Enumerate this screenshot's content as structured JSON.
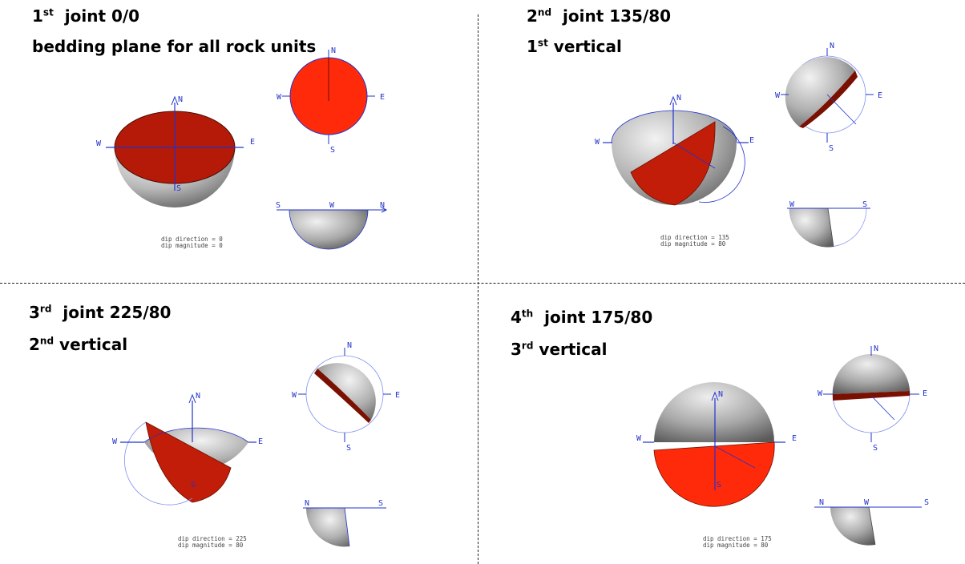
{
  "panels": [
    {
      "num": "1",
      "suffix": "st",
      "title": "joint 0/0",
      "subtitle": "bedding plane for all rock units",
      "sub_num": "",
      "sub_suffix": "",
      "caption1": "dip direction = 0",
      "caption2": "dip magnitude = 0"
    },
    {
      "num": "2",
      "suffix": "nd",
      "title": "joint 135/80",
      "subtitle": "vertical",
      "sub_num": "1",
      "sub_suffix": "st",
      "caption1": "dip direction = 135",
      "caption2": "dip magnitude = 80"
    },
    {
      "num": "3",
      "suffix": "rd",
      "title": "joint 225/80",
      "subtitle": "vertical",
      "sub_num": "2",
      "sub_suffix": "nd",
      "caption1": "dip direction = 225",
      "caption2": "dip magnitude = 80"
    },
    {
      "num": "4",
      "suffix": "th",
      "title": "joint 175/80",
      "subtitle": "vertical",
      "sub_num": "3",
      "sub_suffix": "rd",
      "caption1": "dip direction = 175",
      "caption2": "dip magnitude = 80"
    }
  ],
  "compass": {
    "n": "N",
    "s": "S",
    "e": "E",
    "w": "W"
  },
  "colors": {
    "plane_dark": "#b51a08",
    "plane_bright": "#ff2a0a",
    "axis": "#2233cc",
    "shell_light": "#e6e6e6",
    "shell_dark": "#6e6e6e"
  }
}
